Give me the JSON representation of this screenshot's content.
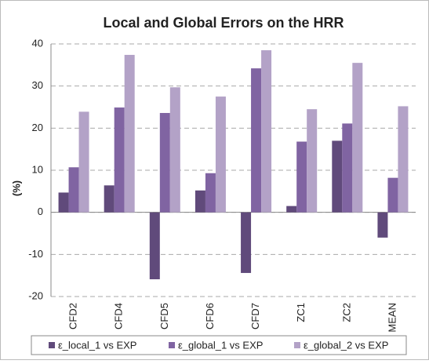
{
  "chart_data": {
    "type": "bar",
    "title": "Local and Global Errors on the HRR",
    "y_label": "(%)",
    "categories": [
      "CFD2",
      "CFD4",
      "CFD5",
      "CFD6",
      "CFD7",
      "ZC1",
      "ZC2",
      "MEAN"
    ],
    "series": [
      {
        "name": "ε_local_1 vs EXP",
        "color": "#604a7b",
        "values": [
          4.7,
          6.4,
          -15.9,
          5.2,
          -14.4,
          1.5,
          17.0,
          -6.0
        ]
      },
      {
        "name": "ε_global_1 vs EXP",
        "color": "#8064a2",
        "values": [
          10.7,
          24.9,
          23.6,
          9.3,
          34.2,
          16.8,
          21.1,
          8.2
        ]
      },
      {
        "name": "ε_global_2 vs EXP",
        "color": "#b3a2c7",
        "values": [
          23.9,
          37.4,
          29.7,
          27.5,
          38.5,
          24.5,
          35.5,
          25.2
        ]
      }
    ],
    "ylim": [
      -20,
      40
    ],
    "yticks": [
      -20,
      -10,
      0,
      10,
      20,
      30,
      40
    ],
    "grid": true
  }
}
